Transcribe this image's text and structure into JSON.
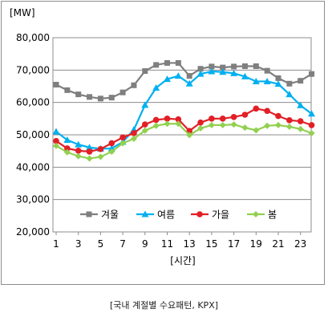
{
  "chart_data": {
    "type": "line",
    "title": "",
    "ylabel": "[MW]",
    "xlabel": "[시간]",
    "ylim": [
      20000,
      80000
    ],
    "yticks": [
      20000,
      30000,
      40000,
      50000,
      60000,
      70000,
      80000
    ],
    "ytick_labels": [
      "20,000",
      "30,000",
      "40,000",
      "50,000",
      "60,000",
      "70,000",
      "80,000"
    ],
    "x": [
      1,
      2,
      3,
      4,
      5,
      6,
      7,
      8,
      9,
      10,
      11,
      12,
      13,
      14,
      15,
      16,
      17,
      18,
      19,
      20,
      21,
      22,
      23,
      24
    ],
    "xtick_labels": [
      "1",
      "3",
      "5",
      "7",
      "9",
      "11",
      "13",
      "15",
      "17",
      "19",
      "21",
      "23"
    ],
    "grid": "horizontal",
    "legend": "bottom-center",
    "series": [
      {
        "name": "겨울",
        "color": "#7f7f7f",
        "marker": "square",
        "values": [
          65500,
          63800,
          62500,
          61700,
          61200,
          61500,
          63100,
          65300,
          69700,
          71600,
          72200,
          72200,
          68200,
          70400,
          71100,
          70800,
          71100,
          71200,
          71200,
          69800,
          67500,
          65800,
          66700,
          68800
        ]
      },
      {
        "name": "여름",
        "color": "#00b0f0",
        "marker": "triangle",
        "values": [
          51000,
          48400,
          47000,
          46100,
          45700,
          45800,
          47800,
          51600,
          59200,
          64500,
          67200,
          68200,
          65800,
          68800,
          69600,
          69400,
          69000,
          68000,
          66500,
          66500,
          65700,
          62500,
          59100,
          56500
        ]
      },
      {
        "name": "가을",
        "color": "#e21f26",
        "marker": "circle",
        "values": [
          48100,
          45800,
          45100,
          44800,
          45600,
          47400,
          49200,
          50500,
          53200,
          54600,
          55000,
          54800,
          51200,
          53800,
          55000,
          55000,
          55500,
          56200,
          58100,
          57400,
          55800,
          54500,
          54200,
          53000
        ]
      },
      {
        "name": "봄",
        "color": "#92d050",
        "marker": "diamond",
        "values": [
          46600,
          44600,
          43400,
          42700,
          43200,
          44800,
          47400,
          48800,
          51300,
          52800,
          53400,
          53400,
          49900,
          52000,
          53000,
          53000,
          53200,
          52200,
          51400,
          52800,
          53000,
          52500,
          51800,
          50500
        ]
      }
    ]
  },
  "caption": "[국내 계절별 수요패턴, KPX]"
}
